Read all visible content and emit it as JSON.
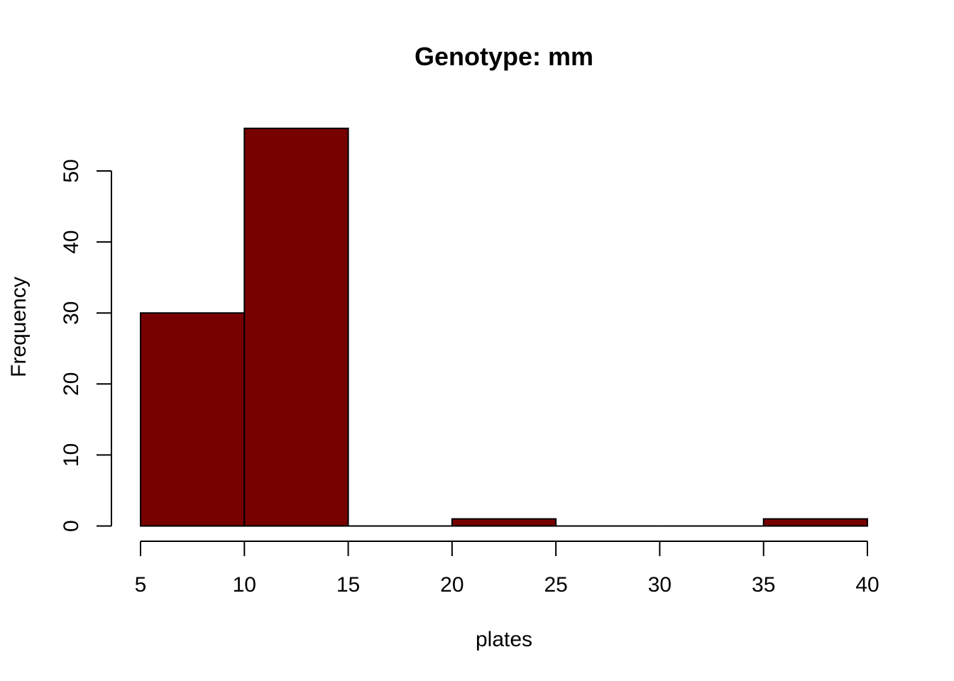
{
  "chart_data": {
    "type": "bar",
    "subtype": "histogram",
    "title": "Genotype: mm",
    "xlabel": "plates",
    "ylabel": "Frequency",
    "bins": [
      {
        "from": 5,
        "to": 10,
        "count": 30
      },
      {
        "from": 10,
        "to": 15,
        "count": 56
      },
      {
        "from": 15,
        "to": 20,
        "count": 0
      },
      {
        "from": 20,
        "to": 25,
        "count": 1
      },
      {
        "from": 25,
        "to": 30,
        "count": 0
      },
      {
        "from": 30,
        "to": 35,
        "count": 0
      },
      {
        "from": 35,
        "to": 40,
        "count": 1
      }
    ],
    "xlim": [
      5,
      40
    ],
    "ylim": [
      0,
      56
    ],
    "x_ticks": [
      5,
      10,
      15,
      20,
      25,
      30,
      35,
      40
    ],
    "y_ticks": [
      0,
      10,
      20,
      30,
      40,
      50
    ],
    "bar_color": "#770000",
    "border_color": "#000000",
    "grid": false,
    "legend": "none"
  }
}
